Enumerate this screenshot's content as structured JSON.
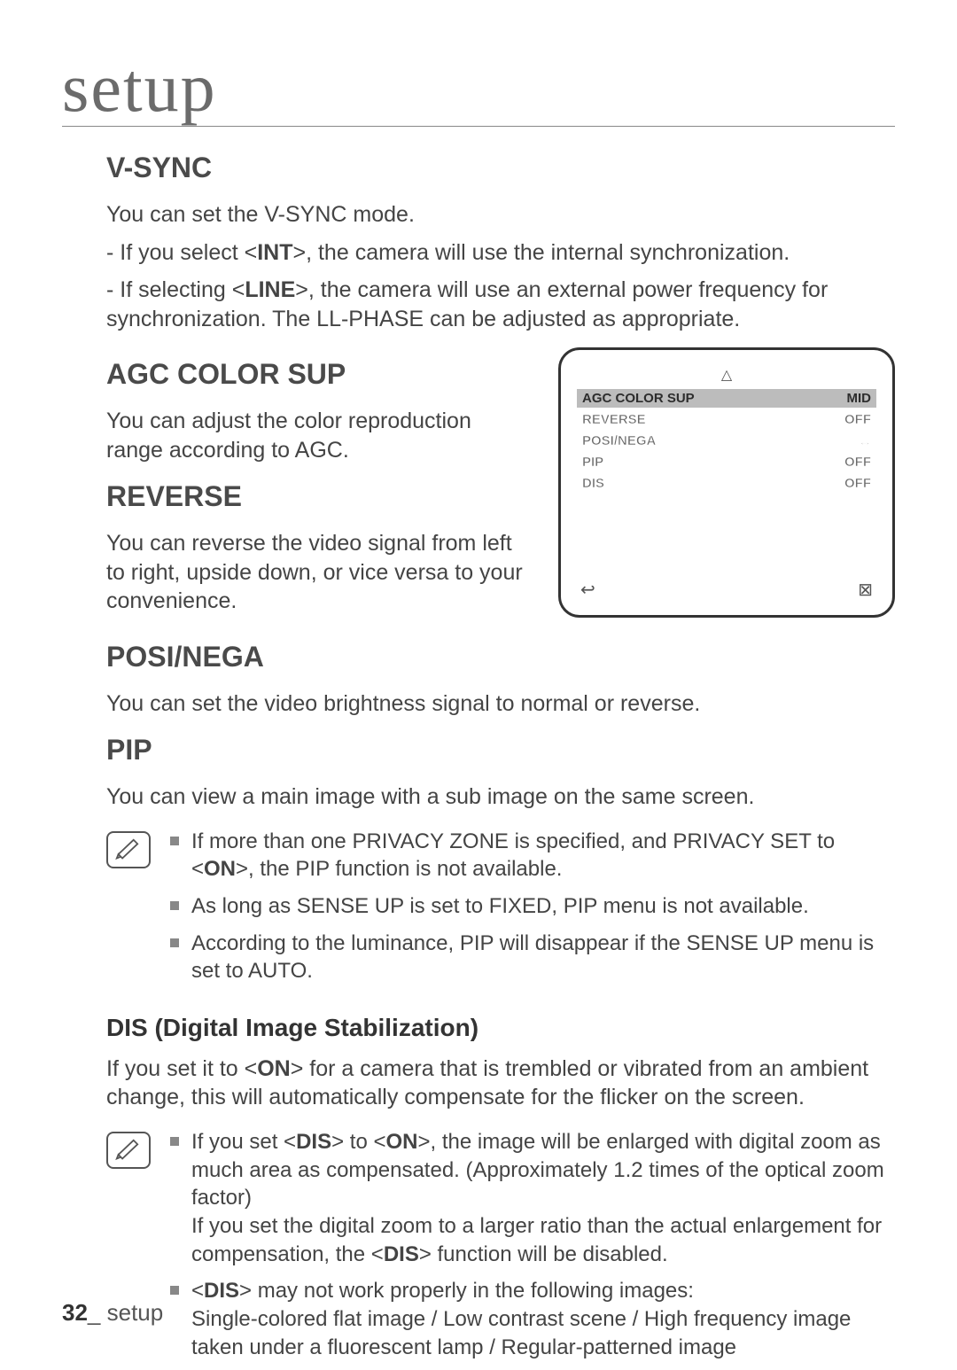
{
  "chapter": "setup",
  "sections": {
    "vsync": {
      "title": "V-SYNC",
      "intro": "You can set the V-SYNC mode.",
      "bullets": [
        {
          "pre": "- If you select <",
          "bold": "INT",
          "post": ">, the camera will use the internal synchronization."
        },
        {
          "pre": "- If selecting <",
          "bold": "LINE",
          "post": ">, the camera will use an external power frequency for synchronization. The LL-PHASE can be adjusted as appropriate."
        }
      ]
    },
    "agc": {
      "title": "AGC COLOR SUP",
      "body": "You can adjust the color reproduction range according to AGC."
    },
    "reverse": {
      "title": "REVERSE",
      "body": "You can reverse the video signal from left to right, upside down, or vice versa to your convenience."
    },
    "posinega": {
      "title": "POSI/NEGA",
      "body": "You can set the video brightness signal to normal or reverse."
    },
    "pip": {
      "title": "PIP",
      "body": "You can view a main image with a sub image on the same screen.",
      "notes": [
        "If more than one PRIVACY ZONE is specified, and PRIVACY SET to <ON>, the PIP function is not available.",
        "As long as SENSE UP is set to FIXED, PIP menu is not available.",
        "According to the luminance, PIP will disappear if the SENSE UP menu is set to AUTO."
      ],
      "note_bold_idx0": "ON"
    },
    "dis": {
      "title": "DIS (Digital Image Stabilization)",
      "body_pre": "If you set it to <",
      "body_bold": "ON",
      "body_post": "> for a camera that is trembled or vibrated from an ambient change, this will automatically compensate for the flicker on the screen.",
      "notes": [
        {
          "text": "If you set <DIS> to <ON>, the image will be enlarged with digital zoom as much area as compensated. (Approximately 1.2 times of the optical zoom factor) If you set the digital zoom to a larger ratio than the actual enlargement for compensation, the <DIS> function will be disabled.",
          "bolds": [
            "DIS",
            "ON",
            "DIS"
          ]
        },
        {
          "text": "<DIS> may not work properly in the following images: Single-colored flat image / Low contrast scene / High frequency image taken under a fluorescent lamp / Regular-patterned image",
          "bolds": [
            "DIS"
          ]
        }
      ]
    }
  },
  "osd": {
    "rows": [
      {
        "label": "AGC COLOR SUP",
        "value": "MID",
        "selected": true
      },
      {
        "label": "REVERSE",
        "value": "OFF",
        "selected": false
      },
      {
        "label": "POSI/NEGA",
        "value": "+",
        "selected": false,
        "arrow": true
      },
      {
        "label": "PIP",
        "value": "OFF",
        "selected": false
      },
      {
        "label": "DIS",
        "value": "OFF",
        "selected": false
      }
    ],
    "back_icon": "↩",
    "close_icon": "⊠",
    "up_icon": "△"
  },
  "footer": {
    "page": "32",
    "label": "setup"
  }
}
